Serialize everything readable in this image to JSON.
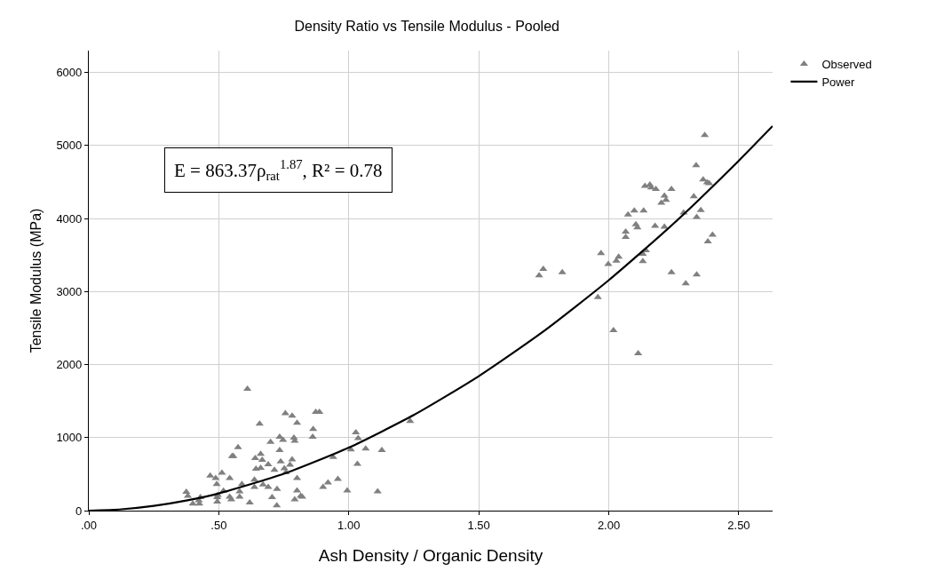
{
  "chart_data": {
    "type": "scatter",
    "title": "Density Ratio vs Tensile Modulus - Pooled",
    "xlabel": "Ash Density / Organic Density",
    "ylabel": "Tensile Modulus (MPa)",
    "xlim": [
      0,
      2.63
    ],
    "ylim": [
      0,
      6300
    ],
    "xticks": [
      {
        "value": 0,
        "label": ".00"
      },
      {
        "value": 0.5,
        "label": ".50"
      },
      {
        "value": 1,
        "label": "1.00"
      },
      {
        "value": 1.5,
        "label": "1.50"
      },
      {
        "value": 2,
        "label": "2.00"
      },
      {
        "value": 2.5,
        "label": "2.50"
      }
    ],
    "yticks": [
      0,
      1000,
      2000,
      3000,
      4000,
      5000,
      6000
    ],
    "grid": true,
    "legend": "top right",
    "annotations": [
      "E = 863.37ρ$_{rat}$$^{1.87}$, R² = 0.78"
    ],
    "series": [
      {
        "name": "Observed",
        "marker": "triangle",
        "color": "#808080",
        "x": [
          0.375,
          0.381,
          0.4,
          0.423,
          0.425,
          0.429,
          0.467,
          0.488,
          0.492,
          0.494,
          0.494,
          0.496,
          0.512,
          0.518,
          0.542,
          0.542,
          0.548,
          0.551,
          0.556,
          0.574,
          0.58,
          0.589,
          0.58,
          0.61,
          0.619,
          0.637,
          0.637,
          0.64,
          0.643,
          0.657,
          0.661,
          0.661,
          0.667,
          0.67,
          0.69,
          0.69,
          0.699,
          0.705,
          0.714,
          0.723,
          0.724,
          0.734,
          0.734,
          0.738,
          0.747,
          0.752,
          0.756,
          0.758,
          0.774,
          0.782,
          0.782,
          0.789,
          0.792,
          0.792,
          0.801,
          0.801,
          0.801,
          0.815,
          0.821,
          0.861,
          0.863,
          0.873,
          0.887,
          0.901,
          0.92,
          0.94,
          0.958,
          0.994,
          1.027,
          1.036,
          1.008,
          1.065,
          1.127,
          1.033,
          1.111,
          1.236,
          1.732,
          1.748,
          1.821,
          1.958,
          1.97,
          1.998,
          2.018,
          2.029,
          2.038,
          2.065,
          2.065,
          2.074,
          2.098,
          2.104,
          2.11,
          2.113,
          2.131,
          2.131,
          2.134,
          2.139,
          2.143,
          2.158,
          2.163,
          2.178,
          2.181,
          2.202,
          2.214,
          2.214,
          2.22,
          2.241,
          2.241,
          2.288,
          2.296,
          2.327,
          2.336,
          2.338,
          2.338,
          2.354,
          2.363,
          2.369,
          2.378,
          2.381,
          2.386,
          2.399
        ],
        "values": [
          254,
          202,
          93,
          141,
          93,
          181,
          476,
          444,
          363,
          181,
          121,
          214,
          516,
          270,
          444,
          190,
          153,
          746,
          746,
          867,
          262,
          363,
          190,
          1665,
          109,
          323,
          423,
          718,
          573,
          1190,
          585,
          774,
          694,
          355,
          633,
          323,
          940,
          181,
          556,
          69,
          294,
          1008,
          827,
          673,
          968,
          577,
          1331,
          524,
          625,
          1298,
          698,
          996,
          956,
          153,
          1202,
          444,
          274,
          202,
          190,
          1008,
          1117,
          1351,
          1351,
          323,
          383,
          734,
          431,
          274,
          1071,
          990,
          836,
          848,
          828,
          638,
          263,
          1224,
          3220,
          3309,
          3261,
          2921,
          3523,
          3374,
          2470,
          3422,
          3475,
          3818,
          3745,
          4052,
          4109,
          3919,
          3878,
          2154,
          3515,
          3414,
          4109,
          4444,
          3563,
          4465,
          4424,
          3899,
          4404,
          4214,
          4311,
          3887,
          4255,
          4404,
          3261,
          4081,
          3111,
          4303,
          4727,
          4020,
          3232,
          4113,
          4533,
          5143,
          4493,
          3684,
          4481,
          3777
        ]
      },
      {
        "name": "Power",
        "type": "line",
        "color": "#000000",
        "line_style": "solid",
        "marker": "none",
        "x": [
          0,
          0.125,
          0.25,
          0.375,
          0.5,
          0.75,
          1.0,
          1.25,
          1.5,
          1.75,
          2.0,
          2.25,
          2.5,
          2.63
        ],
        "values": [
          0,
          18,
          65,
          138,
          236,
          504,
          863,
          1310,
          1842,
          2458,
          3156,
          3934,
          4793,
          5266
        ]
      }
    ]
  }
}
